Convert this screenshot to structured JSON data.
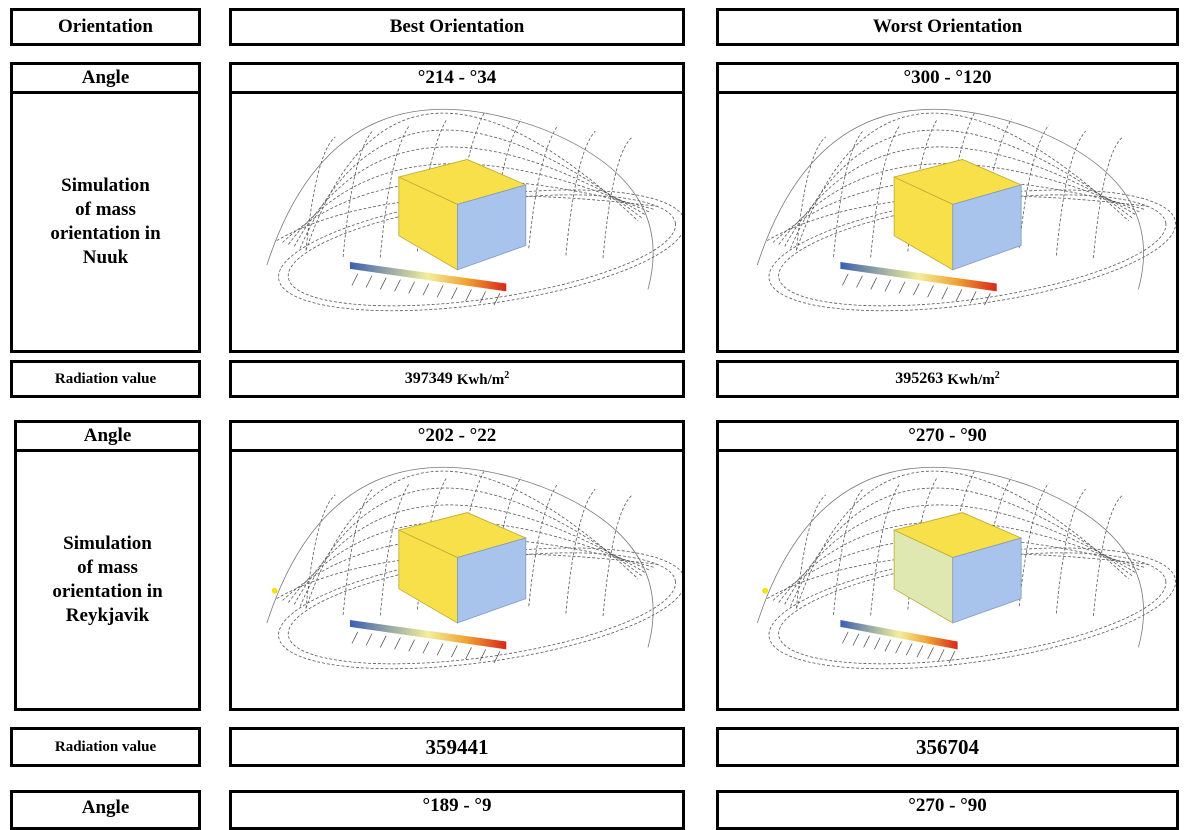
{
  "header": {
    "orientation": "Orientation",
    "best": "Best Orientation",
    "worst": "Worst Orientation"
  },
  "labels": {
    "angle": "Angle",
    "radiation": "Radiation value"
  },
  "nuuk": {
    "sim_label": [
      "Simulation",
      "of mass",
      "orientation in",
      "Nuuk"
    ],
    "best_angle": "°214 - °34",
    "worst_angle": "°300 - °120",
    "best_value": "397349",
    "worst_value": "395263",
    "unit": "Kwh/m",
    "unit_exp": "2"
  },
  "reykjavik": {
    "sim_label": [
      "Simulation",
      "of mass",
      "orientation in",
      "Reykjavik"
    ],
    "best_angle": "°202 - °22",
    "worst_angle": "°270 - °90",
    "best_value": "359441",
    "worst_value": "356704"
  },
  "third": {
    "best_angle": "°189 - °9",
    "worst_angle": "°270 - °90"
  },
  "colors": {
    "box_top": "#f7e04a",
    "box_side": "#a9c4ec",
    "legend_low": "#3a5fb0",
    "legend_high": "#d8281a"
  }
}
